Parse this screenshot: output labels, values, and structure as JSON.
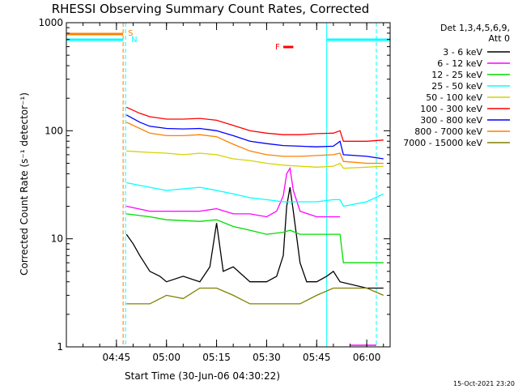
{
  "chart_data": {
    "type": "line",
    "title": "RHESSI Observing Summary Count Rates, Corrected",
    "xlabel": "Start Time (30-Jun-06 04:30:22)",
    "ylabel": "Corrected Count Rate (s⁻¹ detector⁻¹)",
    "y_scale": "log",
    "ylim": [
      1,
      1000
    ],
    "xlim": [
      "04:30",
      "06:07"
    ],
    "x_ticks": [
      "04:45",
      "05:00",
      "05:15",
      "05:30",
      "05:45",
      "06:00"
    ],
    "y_ticks": [
      "1",
      "10",
      "100",
      "1000"
    ],
    "legend_header": [
      "Det 1,3,4,5,6,9,",
      "Att 0"
    ],
    "legend_position": "right",
    "flag_labels": {
      "saa": "S",
      "night": "N",
      "flare": "F"
    },
    "timestamp": "15-Oct-2021 23:20",
    "colors": {
      "axes": "#000000",
      "saa_flag": "#ff7f00",
      "night_flag": "#00ffff",
      "flare_flag": "#ff0000",
      "attenuator_flag": "#ff00ff"
    },
    "flag_intervals": {
      "saa": [
        [
          "04:30",
          "04:47"
        ]
      ],
      "night": [
        [
          "04:30",
          "04:47"
        ],
        [
          "05:48",
          "06:07"
        ]
      ],
      "flare": [
        [
          "05:35",
          "05:38"
        ]
      ],
      "attenuator": [
        [
          "05:55",
          "06:07"
        ]
      ]
    },
    "series": [
      {
        "name": "3 - 6 keV",
        "color": "#000000",
        "points": [
          [
            "04:48",
            11
          ],
          [
            "04:50",
            9
          ],
          [
            "04:52",
            7
          ],
          [
            "04:55",
            5
          ],
          [
            "04:58",
            4.5
          ],
          [
            "05:00",
            4
          ],
          [
            "05:05",
            4.5
          ],
          [
            "05:10",
            4
          ],
          [
            "05:13",
            5.5
          ],
          [
            "05:15",
            14
          ],
          [
            "05:17",
            5
          ],
          [
            "05:20",
            5.5
          ],
          [
            "05:25",
            4
          ],
          [
            "05:30",
            4
          ],
          [
            "05:33",
            4.5
          ],
          [
            "05:35",
            7
          ],
          [
            "05:36",
            20
          ],
          [
            "05:37",
            30
          ],
          [
            "05:38",
            18
          ],
          [
            "05:40",
            6
          ],
          [
            "05:42",
            4
          ],
          [
            "05:45",
            4
          ],
          [
            "05:48",
            4.5
          ],
          [
            "05:50",
            5
          ],
          [
            "05:52",
            4
          ],
          [
            "06:00",
            3.5
          ],
          [
            "06:05",
            3.5
          ]
        ]
      },
      {
        "name": "6 - 12 keV",
        "color": "#ff00ff",
        "points": [
          [
            "04:48",
            20
          ],
          [
            "04:55",
            18
          ],
          [
            "05:00",
            18
          ],
          [
            "05:10",
            18
          ],
          [
            "05:15",
            19
          ],
          [
            "05:20",
            17
          ],
          [
            "05:25",
            17
          ],
          [
            "05:30",
            16
          ],
          [
            "05:33",
            18
          ],
          [
            "05:35",
            25
          ],
          [
            "05:36",
            40
          ],
          [
            "05:37",
            45
          ],
          [
            "05:38",
            28
          ],
          [
            "05:40",
            18
          ],
          [
            "05:45",
            16
          ],
          [
            "05:50",
            16
          ],
          [
            "05:52",
            16
          ]
        ]
      },
      {
        "name": "12 - 25 keV",
        "color": "#00dd00",
        "points": [
          [
            "04:48",
            17
          ],
          [
            "04:55",
            16
          ],
          [
            "05:00",
            15
          ],
          [
            "05:10",
            14.5
          ],
          [
            "05:15",
            15
          ],
          [
            "05:20",
            13
          ],
          [
            "05:25",
            12
          ],
          [
            "05:30",
            11
          ],
          [
            "05:35",
            11.5
          ],
          [
            "05:37",
            12
          ],
          [
            "05:40",
            11
          ],
          [
            "05:45",
            11
          ],
          [
            "05:50",
            11
          ],
          [
            "05:52",
            11
          ],
          [
            "05:53",
            6
          ],
          [
            "06:00",
            6
          ],
          [
            "06:05",
            6
          ]
        ]
      },
      {
        "name": "25 - 50 keV",
        "color": "#00ffff",
        "points": [
          [
            "04:48",
            33
          ],
          [
            "04:55",
            30
          ],
          [
            "05:00",
            28
          ],
          [
            "05:05",
            29
          ],
          [
            "05:10",
            30
          ],
          [
            "05:15",
            28
          ],
          [
            "05:20",
            26
          ],
          [
            "05:25",
            24
          ],
          [
            "05:30",
            23
          ],
          [
            "05:35",
            22
          ],
          [
            "05:40",
            22
          ],
          [
            "05:45",
            22
          ],
          [
            "05:50",
            23
          ],
          [
            "05:52",
            23
          ],
          [
            "05:53",
            20
          ],
          [
            "06:00",
            22
          ],
          [
            "06:05",
            26
          ]
        ]
      },
      {
        "name": "50 - 100 keV",
        "color": "#d4d400",
        "points": [
          [
            "04:48",
            65
          ],
          [
            "04:55",
            63
          ],
          [
            "05:00",
            62
          ],
          [
            "05:05",
            60
          ],
          [
            "05:10",
            62
          ],
          [
            "05:15",
            60
          ],
          [
            "05:20",
            55
          ],
          [
            "05:25",
            53
          ],
          [
            "05:30",
            50
          ],
          [
            "05:35",
            48
          ],
          [
            "05:40",
            47
          ],
          [
            "05:45",
            46
          ],
          [
            "05:50",
            47
          ],
          [
            "05:52",
            50
          ],
          [
            "05:53",
            45
          ],
          [
            "06:00",
            46
          ],
          [
            "06:05",
            47
          ]
        ]
      },
      {
        "name": "100 - 300 keV",
        "color": "#ff0000",
        "points": [
          [
            "04:48",
            165
          ],
          [
            "04:52",
            145
          ],
          [
            "04:55",
            135
          ],
          [
            "05:00",
            128
          ],
          [
            "05:05",
            128
          ],
          [
            "05:10",
            130
          ],
          [
            "05:15",
            125
          ],
          [
            "05:20",
            112
          ],
          [
            "05:25",
            100
          ],
          [
            "05:30",
            95
          ],
          [
            "05:35",
            92
          ],
          [
            "05:40",
            92
          ],
          [
            "05:45",
            94
          ],
          [
            "05:50",
            95
          ],
          [
            "05:52",
            100
          ],
          [
            "05:53",
            80
          ],
          [
            "06:00",
            80
          ],
          [
            "06:05",
            82
          ]
        ]
      },
      {
        "name": "300 - 800 keV",
        "color": "#0000ff",
        "points": [
          [
            "04:48",
            140
          ],
          [
            "04:52",
            120
          ],
          [
            "04:55",
            110
          ],
          [
            "05:00",
            105
          ],
          [
            "05:05",
            104
          ],
          [
            "05:10",
            105
          ],
          [
            "05:15",
            100
          ],
          [
            "05:20",
            90
          ],
          [
            "05:25",
            80
          ],
          [
            "05:30",
            76
          ],
          [
            "05:35",
            73
          ],
          [
            "05:40",
            72
          ],
          [
            "05:45",
            71
          ],
          [
            "05:50",
            72
          ],
          [
            "05:52",
            80
          ],
          [
            "05:53",
            60
          ],
          [
            "06:00",
            58
          ],
          [
            "06:05",
            55
          ]
        ]
      },
      {
        "name": "800 - 7000 keV",
        "color": "#ff7f00",
        "points": [
          [
            "04:48",
            120
          ],
          [
            "04:52",
            105
          ],
          [
            "04:55",
            95
          ],
          [
            "05:00",
            90
          ],
          [
            "05:05",
            90
          ],
          [
            "05:10",
            92
          ],
          [
            "05:15",
            88
          ],
          [
            "05:20",
            75
          ],
          [
            "05:25",
            65
          ],
          [
            "05:30",
            60
          ],
          [
            "05:35",
            58
          ],
          [
            "05:40",
            58
          ],
          [
            "05:45",
            59
          ],
          [
            "05:50",
            60
          ],
          [
            "05:52",
            62
          ],
          [
            "05:53",
            52
          ],
          [
            "06:00",
            50
          ],
          [
            "06:05",
            50
          ]
        ]
      },
      {
        "name": "7000 - 15000 keV",
        "color": "#808000",
        "points": [
          [
            "04:48",
            2.5
          ],
          [
            "04:55",
            2.5
          ],
          [
            "05:00",
            3
          ],
          [
            "05:05",
            2.8
          ],
          [
            "05:10",
            3.5
          ],
          [
            "05:15",
            3.5
          ],
          [
            "05:20",
            3
          ],
          [
            "05:25",
            2.5
          ],
          [
            "05:30",
            2.5
          ],
          [
            "05:35",
            2.5
          ],
          [
            "05:40",
            2.5
          ],
          [
            "05:45",
            3
          ],
          [
            "05:50",
            3.5
          ],
          [
            "05:55",
            3.5
          ],
          [
            "06:00",
            3.5
          ],
          [
            "06:05",
            3
          ]
        ]
      }
    ]
  }
}
